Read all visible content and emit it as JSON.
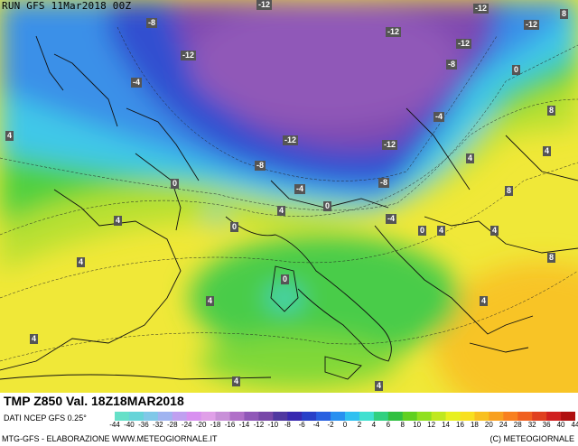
{
  "header": {
    "run_label": "RUN GFS 11Mar2018 00Z"
  },
  "footer": {
    "title": "TMP Z850 Val. 18Z18MAR2018",
    "data_source": "DATI NCEP GFS 0.25°",
    "credit_left": "MTG-GFS - ELABORAZIONE WWW.METEOGIORNALE.IT",
    "credit_right": "(C) METEOGIORNALE"
  },
  "scale": {
    "labels": [
      "-44",
      "-40",
      "-36",
      "-32",
      "-28",
      "-24",
      "-20",
      "-18",
      "-16",
      "-14",
      "-12",
      "-10",
      "-8",
      "-6",
      "-4",
      "-2",
      "0",
      "2",
      "4",
      "6",
      "8",
      "10",
      "12",
      "14",
      "16",
      "18",
      "20",
      "24",
      "28",
      "32",
      "36",
      "40",
      "44"
    ],
    "colors": [
      "#66e0c8",
      "#66d4d8",
      "#80c8e8",
      "#a0b4f0",
      "#c0a0f0",
      "#d890f0",
      "#e0a0e8",
      "#c890d8",
      "#b070c8",
      "#9058b8",
      "#7848a8",
      "#5038a0",
      "#3828b0",
      "#2840c8",
      "#2860e0",
      "#2890f0",
      "#30c0f0",
      "#40e0d0",
      "#30d080",
      "#30c040",
      "#60d020",
      "#90e020",
      "#c0e820",
      "#e8f020",
      "#f8e020",
      "#f8c020",
      "#f8a020",
      "#f88020",
      "#f06020",
      "#e04020",
      "#d02020",
      "#b01010"
    ]
  },
  "isotherm_labels": [
    {
      "text": "-12"
    },
    {
      "text": "-12"
    },
    {
      "text": "-8"
    },
    {
      "text": "-12"
    },
    {
      "text": "-12"
    },
    {
      "text": "-12"
    },
    {
      "text": "-4"
    },
    {
      "text": "-12"
    },
    {
      "text": "-8"
    },
    {
      "text": "0"
    },
    {
      "text": "-4"
    },
    {
      "text": "-12"
    },
    {
      "text": "-12"
    },
    {
      "text": "-8"
    },
    {
      "text": "-4"
    },
    {
      "text": "-8"
    },
    {
      "text": "0"
    },
    {
      "text": "-4"
    },
    {
      "text": "0"
    },
    {
      "text": "4"
    },
    {
      "text": "0"
    },
    {
      "text": "4"
    },
    {
      "text": "8"
    },
    {
      "text": "4"
    },
    {
      "text": "4"
    },
    {
      "text": "0"
    },
    {
      "text": "4"
    },
    {
      "text": "4"
    },
    {
      "text": "4"
    },
    {
      "text": "8"
    },
    {
      "text": "4"
    },
    {
      "text": "4"
    },
    {
      "text": "0"
    },
    {
      "text": "4"
    },
    {
      "text": "8"
    },
    {
      "text": "4"
    },
    {
      "text": "4"
    },
    {
      "text": "4"
    },
    {
      "text": "8"
    }
  ]
}
